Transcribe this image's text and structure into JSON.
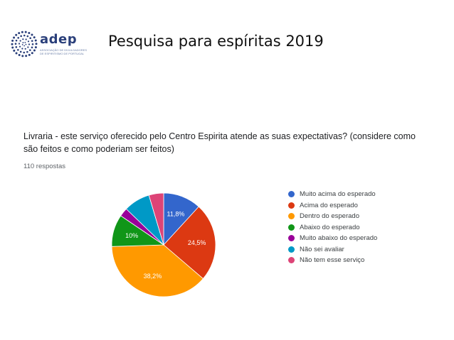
{
  "header": {
    "logo_name": "adep",
    "logo_subtitle": "Associação de Divulgadores de Espiritismo de Portugal",
    "title": "Pesquisa para espíritas  2019"
  },
  "colors": {
    "logo": "#2a3f7a"
  },
  "chart_data": {
    "type": "pie",
    "title": "Livraria - este serviço oferecido pelo Centro Espirita atende as suas expectativas? (considere como são feitos e como poderiam ser feitos)",
    "subtitle": "110 respostas",
    "legend_position": "right",
    "series": [
      {
        "name": "Muito acima do esperado",
        "value": 11.8,
        "label": "11,8%",
        "color": "#3366cc"
      },
      {
        "name": "Acima do esperado",
        "value": 24.5,
        "label": "24,5%",
        "color": "#dc3912"
      },
      {
        "name": "Dentro do esperado",
        "value": 38.2,
        "label": "38,2%",
        "color": "#ff9900"
      },
      {
        "name": "Abaixo do esperado",
        "value": 10.0,
        "label": "10%",
        "color": "#109618"
      },
      {
        "name": "Muito abaixo do esperado",
        "value": 2.7,
        "label": "",
        "color": "#990099"
      },
      {
        "name": "Não sei avaliar",
        "value": 8.2,
        "label": "",
        "color": "#0099c6"
      },
      {
        "name": "Não tem esse serviço",
        "value": 4.6,
        "label": "",
        "color": "#dd4477"
      }
    ]
  }
}
